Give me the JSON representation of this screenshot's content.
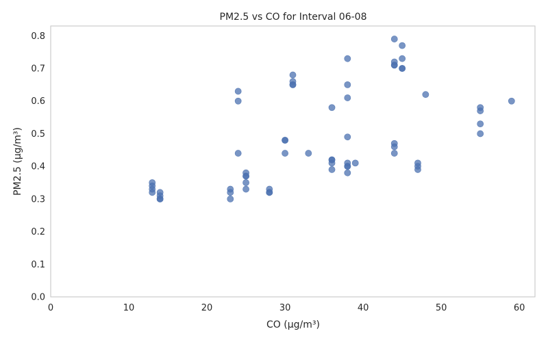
{
  "chart_data": {
    "type": "scatter",
    "title": "PM2.5 vs CO for Interval 06-08",
    "xlabel": "CO (μg/m³)",
    "ylabel": "PM2.5 (μg/m³)",
    "xlim": [
      0,
      62
    ],
    "ylim": [
      0,
      0.83
    ],
    "xticks": [
      0,
      10,
      20,
      30,
      40,
      50,
      60
    ],
    "yticks": [
      0.0,
      0.1,
      0.2,
      0.3,
      0.4,
      0.5,
      0.6,
      0.7,
      0.8
    ],
    "xtick_labels": [
      "0",
      "10",
      "20",
      "30",
      "40",
      "50",
      "60"
    ],
    "ytick_labels": [
      "0.0",
      "0.1",
      "0.2",
      "0.3",
      "0.4",
      "0.5",
      "0.6",
      "0.7",
      "0.8"
    ],
    "grid": false,
    "color": "#4c72b0",
    "points": [
      {
        "x": 13,
        "y": 0.35
      },
      {
        "x": 13,
        "y": 0.34
      },
      {
        "x": 13,
        "y": 0.33
      },
      {
        "x": 13,
        "y": 0.32
      },
      {
        "x": 14,
        "y": 0.32
      },
      {
        "x": 14,
        "y": 0.31
      },
      {
        "x": 14,
        "y": 0.3
      },
      {
        "x": 14,
        "y": 0.3
      },
      {
        "x": 23,
        "y": 0.33
      },
      {
        "x": 23,
        "y": 0.32
      },
      {
        "x": 23,
        "y": 0.3
      },
      {
        "x": 24,
        "y": 0.63
      },
      {
        "x": 24,
        "y": 0.6
      },
      {
        "x": 24,
        "y": 0.44
      },
      {
        "x": 25,
        "y": 0.38
      },
      {
        "x": 25,
        "y": 0.37
      },
      {
        "x": 25,
        "y": 0.37
      },
      {
        "x": 25,
        "y": 0.35
      },
      {
        "x": 25,
        "y": 0.33
      },
      {
        "x": 28,
        "y": 0.33
      },
      {
        "x": 28,
        "y": 0.32
      },
      {
        "x": 28,
        "y": 0.32
      },
      {
        "x": 30,
        "y": 0.48
      },
      {
        "x": 30,
        "y": 0.48
      },
      {
        "x": 30,
        "y": 0.44
      },
      {
        "x": 31,
        "y": 0.68
      },
      {
        "x": 31,
        "y": 0.66
      },
      {
        "x": 31,
        "y": 0.65
      },
      {
        "x": 31,
        "y": 0.65
      },
      {
        "x": 33,
        "y": 0.44
      },
      {
        "x": 36,
        "y": 0.58
      },
      {
        "x": 36,
        "y": 0.42
      },
      {
        "x": 36,
        "y": 0.42
      },
      {
        "x": 36,
        "y": 0.41
      },
      {
        "x": 36,
        "y": 0.39
      },
      {
        "x": 38,
        "y": 0.73
      },
      {
        "x": 38,
        "y": 0.65
      },
      {
        "x": 38,
        "y": 0.61
      },
      {
        "x": 38,
        "y": 0.49
      },
      {
        "x": 38,
        "y": 0.41
      },
      {
        "x": 38,
        "y": 0.4
      },
      {
        "x": 38,
        "y": 0.4
      },
      {
        "x": 38,
        "y": 0.38
      },
      {
        "x": 39,
        "y": 0.41
      },
      {
        "x": 44,
        "y": 0.79
      },
      {
        "x": 44,
        "y": 0.72
      },
      {
        "x": 44,
        "y": 0.71
      },
      {
        "x": 44,
        "y": 0.71
      },
      {
        "x": 44,
        "y": 0.47
      },
      {
        "x": 44,
        "y": 0.46
      },
      {
        "x": 44,
        "y": 0.44
      },
      {
        "x": 45,
        "y": 0.77
      },
      {
        "x": 45,
        "y": 0.73
      },
      {
        "x": 45,
        "y": 0.7
      },
      {
        "x": 45,
        "y": 0.7
      },
      {
        "x": 47,
        "y": 0.41
      },
      {
        "x": 47,
        "y": 0.4
      },
      {
        "x": 47,
        "y": 0.39
      },
      {
        "x": 48,
        "y": 0.62
      },
      {
        "x": 55,
        "y": 0.58
      },
      {
        "x": 55,
        "y": 0.57
      },
      {
        "x": 55,
        "y": 0.53
      },
      {
        "x": 55,
        "y": 0.5
      },
      {
        "x": 59,
        "y": 0.6
      }
    ]
  }
}
